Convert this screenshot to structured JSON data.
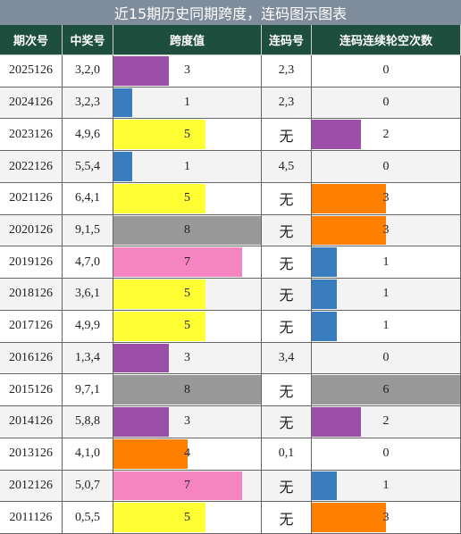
{
  "title": "近15期历史同期跨度，连码图示图表",
  "table": {
    "headers": [
      "期次号",
      "中奖号",
      "跨度值",
      "连码号",
      "连码连续轮空次数"
    ],
    "rows": [
      [
        "2025126",
        "3,2,0",
        3,
        "2,3",
        0
      ],
      [
        "2024126",
        "3,2,3",
        1,
        "2,3",
        0
      ],
      [
        "2023126",
        "4,9,6",
        5,
        "无",
        2
      ],
      [
        "2022126",
        "5,5,4",
        1,
        "4,5",
        0
      ],
      [
        "2021126",
        "6,4,1",
        5,
        "无",
        3
      ],
      [
        "2020126",
        "9,1,5",
        8,
        "无",
        3
      ],
      [
        "2019126",
        "4,7,0",
        7,
        "无",
        1
      ],
      [
        "2018126",
        "3,6,1",
        5,
        "无",
        1
      ],
      [
        "2017126",
        "4,9,9",
        5,
        "无",
        1
      ],
      [
        "2016126",
        "1,3,4",
        3,
        "3,4",
        0
      ],
      [
        "2015126",
        "9,7,1",
        8,
        "无",
        6
      ],
      [
        "2014126",
        "5,8,8",
        3,
        "无",
        2
      ],
      [
        "2013126",
        "4,1,0",
        4,
        "0,1",
        0
      ],
      [
        "2012126",
        "5,0,7",
        7,
        "无",
        1
      ],
      [
        "2011126",
        "0,5,5",
        5,
        "无",
        3
      ]
    ],
    "span_colors": [
      "#9b4fa8",
      "#3a7dbf",
      "#ffff33",
      "#3a7dbf",
      "#ffff33",
      "#999999",
      "#f585c0",
      "#ffff33",
      "#ffff33",
      "#9b4fa8",
      "#999999",
      "#9b4fa8",
      "#ff8000",
      "#f585c0",
      "#ffff33"
    ],
    "miss_colors": [
      null,
      null,
      "#9b4fa8",
      null,
      "#ff8000",
      "#ff8000",
      "#3a7dbf",
      "#3a7dbf",
      "#3a7dbf",
      null,
      "#999999",
      "#9b4fa8",
      null,
      "#3a7dbf",
      "#ff8000"
    ]
  }
}
